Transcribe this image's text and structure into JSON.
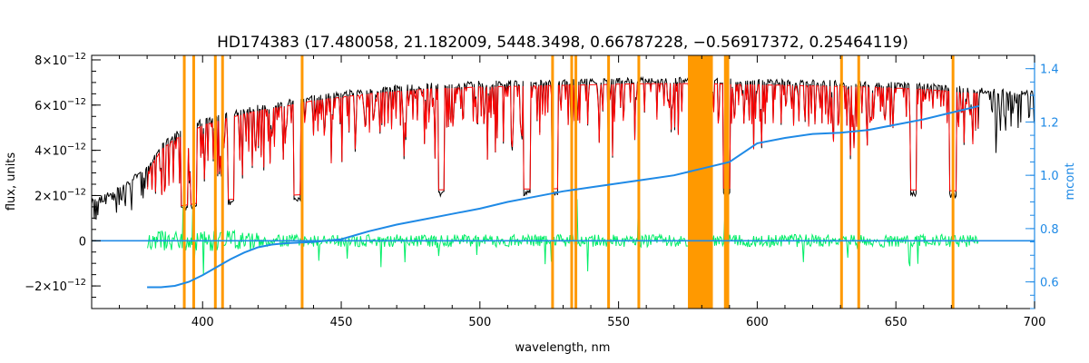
{
  "chart_data": {
    "type": "line",
    "title": "HD174383   (17.480058, 21.182009, 5448.3498, 0.66787228, −0.56917372, 0.25464119)",
    "xlabel": "wavelength, nm",
    "ylabel": "flux, units",
    "ylabel_right": "mcont",
    "xlim": [
      360,
      700
    ],
    "ylim": [
      -3e-12,
      8.2e-12
    ],
    "ylim_right": [
      0.5,
      1.45
    ],
    "x_ticks": [
      400,
      450,
      500,
      550,
      600,
      650,
      700
    ],
    "x_tick_labels": [
      "400",
      "450",
      "500",
      "550",
      "600",
      "650",
      "700"
    ],
    "y_ticks": [
      8e-12,
      6e-12,
      4e-12,
      2e-12,
      0,
      -2e-12
    ],
    "y_tick_labels": [
      {
        "m": "8×10",
        "e": "−12"
      },
      {
        "m": "6×10",
        "e": "−12"
      },
      {
        "m": "4×10",
        "e": "−12"
      },
      {
        "m": "2×10",
        "e": "−12"
      },
      {
        "m": "0",
        "e": ""
      },
      {
        "m": "−2×10",
        "e": "−12"
      }
    ],
    "y_right_ticks": [
      1.4,
      1.2,
      1.0,
      0.8,
      0.6
    ],
    "y_right_tick_labels": [
      "1.4",
      "1.2",
      "1.0",
      "0.8",
      "0.6"
    ],
    "colors": {
      "observed": "#000000",
      "model": "#ff0000",
      "residual": "#00ee66",
      "continuum": "#1f8ae6",
      "masked": "#ff9900",
      "masked_flux": "#ffff00"
    },
    "series": [
      {
        "role": "observed",
        "x": [
          360,
          370,
          380,
          385,
          390,
          395,
          400,
          410,
          420,
          430,
          440,
          450,
          460,
          470,
          480,
          490,
          500,
          520,
          540,
          560,
          580,
          600,
          620,
          640,
          660,
          680,
          700
        ],
        "values": [
          1.7e-12,
          2.3e-12,
          3.2e-12,
          4.2e-12,
          4.7e-12,
          4.9e-12,
          5.3e-12,
          5.6e-12,
          5.9e-12,
          6.1e-12,
          6.35e-12,
          6.5e-12,
          6.65e-12,
          6.75e-12,
          6.85e-12,
          6.9e-12,
          6.95e-12,
          7e-12,
          7.05e-12,
          7.1e-12,
          7.1e-12,
          7.05e-12,
          7e-12,
          6.95e-12,
          6.85e-12,
          6.65e-12,
          6.5e-12
        ]
      },
      {
        "role": "model",
        "x": [
          380,
          385,
          390,
          395,
          400,
          410,
          420,
          430,
          440,
          450,
          460,
          470,
          480,
          490,
          500,
          520,
          540,
          560,
          580,
          600,
          620,
          640,
          660,
          680
        ],
        "values": [
          3e-12,
          4e-12,
          4.5e-12,
          4.75e-12,
          5.1e-12,
          5.45e-12,
          5.75e-12,
          5.95e-12,
          6.2e-12,
          6.35e-12,
          6.5e-12,
          6.6e-12,
          6.7e-12,
          6.75e-12,
          6.8e-12,
          6.85e-12,
          6.9e-12,
          6.95e-12,
          6.95e-12,
          6.9e-12,
          6.85e-12,
          6.8e-12,
          6.7e-12,
          6.5e-12
        ]
      },
      {
        "role": "residual",
        "x_range": [
          380,
          680
        ],
        "level": 0
      },
      {
        "role": "continuum",
        "axis": "right",
        "x": [
          360,
          380,
          390,
          400,
          410,
          420,
          430,
          440,
          450,
          460,
          470,
          480,
          490,
          500,
          510,
          520,
          530,
          540,
          550,
          560,
          570,
          580,
          590,
          600,
          610,
          620,
          630,
          640,
          650,
          660,
          670,
          680,
          700
        ],
        "values": [
          0.76,
          0.76,
          0.75,
          0.75,
          0.76,
          0.76,
          0.76,
          0.76,
          0.76,
          0.76,
          0.76,
          0.76,
          0.76,
          0.76,
          0.76,
          0.76,
          0.76,
          0.76,
          0.76,
          0.76,
          0.76,
          0.76,
          0.76,
          0.76,
          0.76,
          0.76,
          0.76,
          0.76,
          0.76,
          0.76,
          0.76,
          0.76,
          0.76
        ],
        "fit_x": [
          380,
          385,
          390,
          395,
          400,
          405,
          410,
          415,
          420,
          425,
          430,
          440,
          450,
          460,
          470,
          480,
          490,
          500,
          510,
          520,
          530,
          540,
          550,
          560,
          570,
          580,
          590,
          600,
          610,
          620,
          630,
          640,
          650,
          660,
          670,
          680
        ],
        "fit_values": [
          0.58,
          0.58,
          0.585,
          0.6,
          0.625,
          0.655,
          0.685,
          0.71,
          0.73,
          0.74,
          0.745,
          0.75,
          0.76,
          0.79,
          0.815,
          0.835,
          0.855,
          0.875,
          0.9,
          0.92,
          0.94,
          0.955,
          0.97,
          0.985,
          1.0,
          1.025,
          1.05,
          1.12,
          1.14,
          1.155,
          1.16,
          1.17,
          1.19,
          1.21,
          1.235,
          1.26
        ]
      }
    ],
    "masked_lines": [
      393.4,
      396.8,
      404.6,
      407.2,
      435.9,
      526.2,
      533.1,
      534.6,
      546.4,
      557.3,
      588.5,
      589.4,
      630.4,
      636.6,
      670.6
    ],
    "masked_band": [
      575,
      584
    ]
  }
}
